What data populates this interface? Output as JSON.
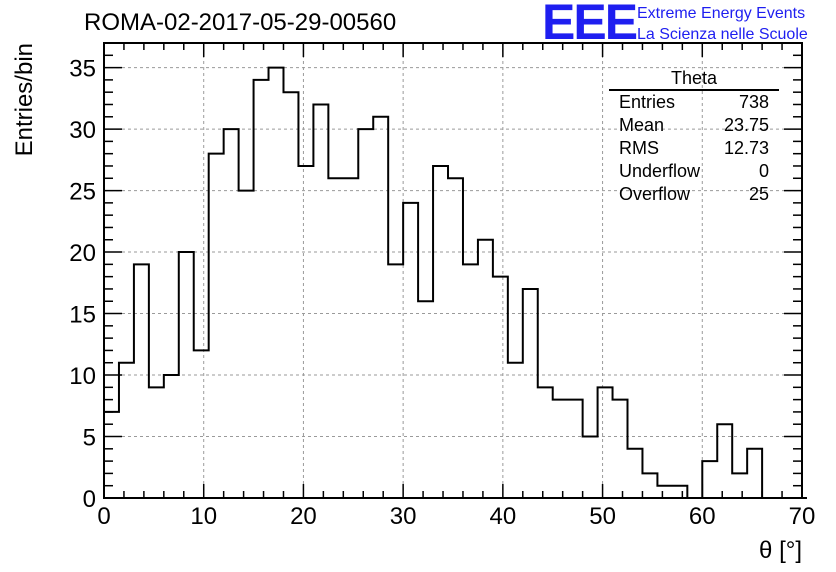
{
  "title": "ROMA-02-2017-05-29-00560",
  "logo": {
    "mark": "EEE",
    "line1": "Extreme Energy Events",
    "line2": "La Scienza nelle Scuole",
    "color": "#1e1ef0"
  },
  "stats": {
    "title": "Theta",
    "rows": [
      {
        "label": "Entries",
        "value": "738"
      },
      {
        "label": "Mean",
        "value": "23.75"
      },
      {
        "label": "RMS",
        "value": "12.73"
      },
      {
        "label": "Underflow",
        "value": "0"
      },
      {
        "label": "Overflow",
        "value": "25"
      }
    ]
  },
  "chart_data": {
    "type": "bar",
    "histogram": true,
    "xlabel": "θ [°]",
    "ylabel": "Entries/bin",
    "xlim": [
      0,
      70
    ],
    "ylim": [
      0,
      37
    ],
    "xticks": [
      0,
      10,
      20,
      30,
      40,
      50,
      60,
      70
    ],
    "yticks": [
      0,
      5,
      10,
      15,
      20,
      25,
      30,
      35
    ],
    "grid": true,
    "bin_width": 1.5,
    "bin_edges_start": 0,
    "values": [
      7,
      11,
      19,
      9,
      10,
      20,
      12,
      28,
      30,
      25,
      34,
      35,
      33,
      27,
      32,
      26,
      26,
      30,
      31,
      19,
      24,
      16,
      27,
      26,
      19,
      21,
      18,
      11,
      17,
      9,
      8,
      8,
      5,
      9,
      8,
      4,
      2,
      1,
      1,
      0,
      3,
      6,
      2,
      4,
      0,
      0,
      0
    ]
  }
}
